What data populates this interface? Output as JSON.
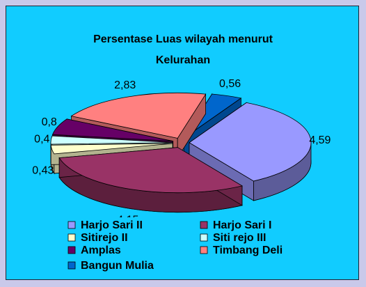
{
  "chart_data": {
    "type": "pie3d",
    "title": "Persentase Luas wilayah menurut Kelurahan",
    "categories": [
      "Harjo Sari II",
      "Harjo Sari I",
      "Sitirejo II",
      "Siti rejo III",
      "Amplas",
      "Timbang Deli",
      "Bangun Mulia"
    ],
    "values": [
      4.59,
      4.15,
      0.43,
      0.4,
      0.8,
      2.83,
      0.56
    ],
    "value_labels": [
      "4,59",
      "4,15",
      "0,43",
      "0,4",
      "0,8",
      "2,83",
      "0,56"
    ],
    "colors": [
      "#9999ff",
      "#993366",
      "#ffffcc",
      "#ccffff",
      "#660066",
      "#ff8080",
      "#0066cc"
    ],
    "legend": "bottom"
  }
}
